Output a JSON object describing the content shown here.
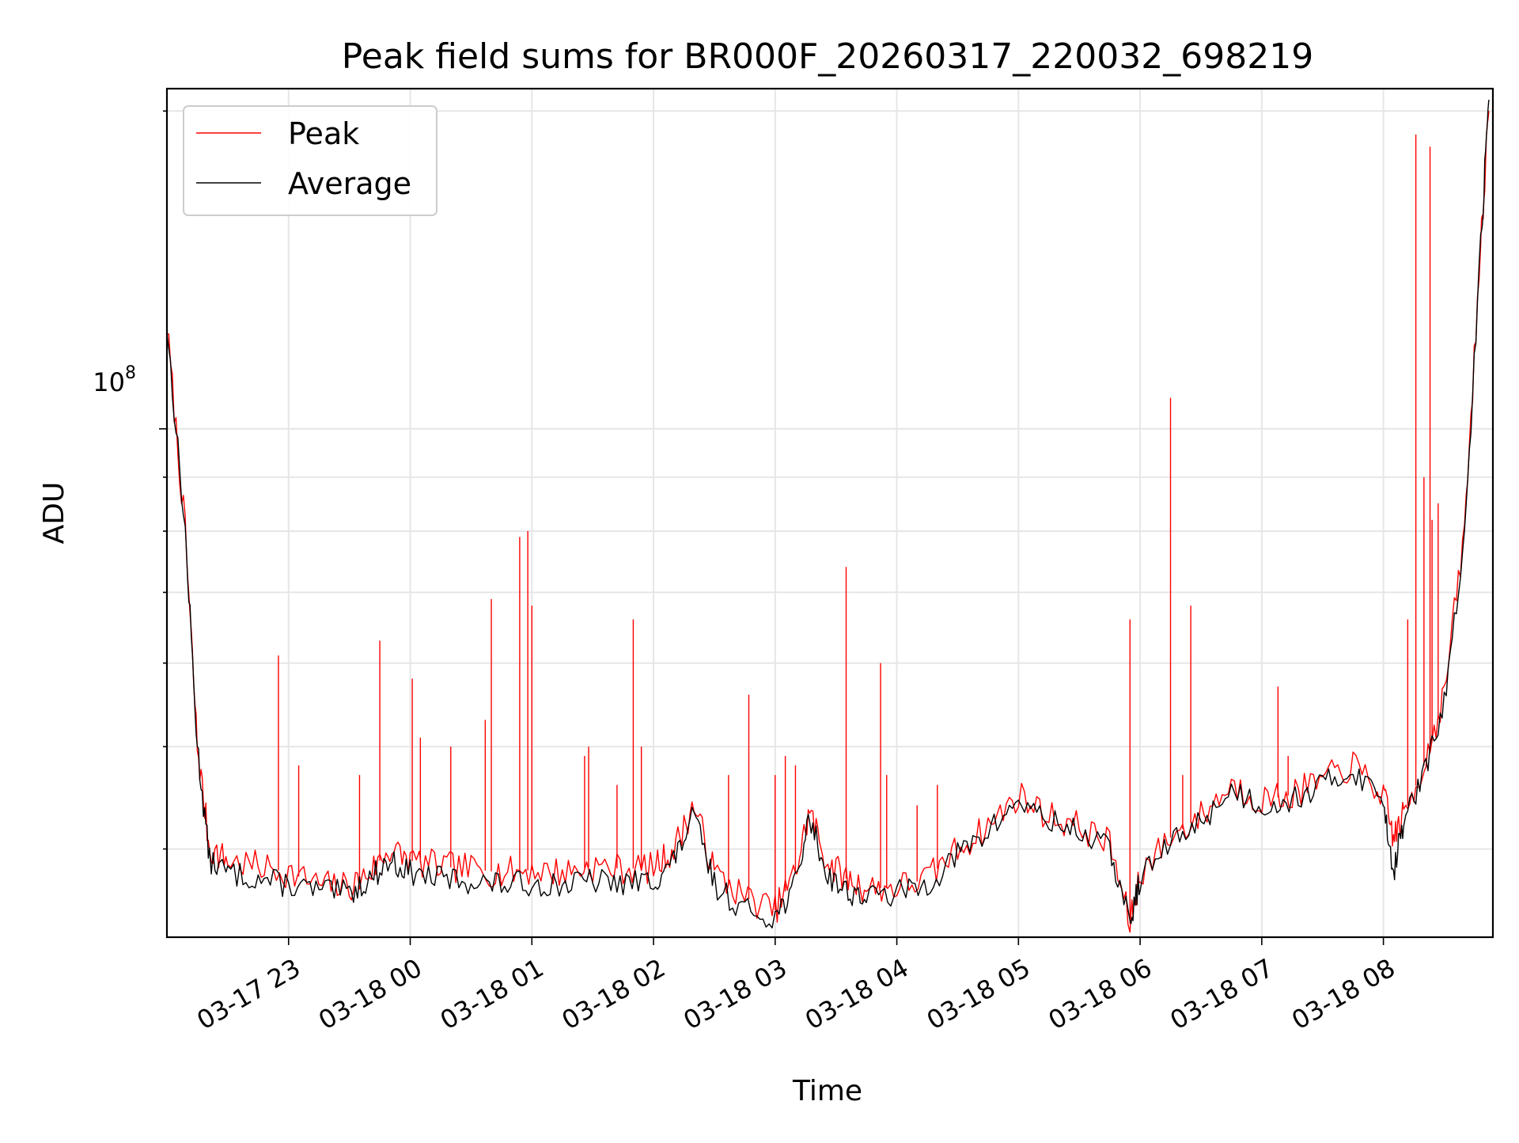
{
  "chart_data": {
    "type": "line",
    "title": "Peak field sums for BR000F_20260317_220032_698219",
    "xlabel": "Time",
    "ylabel": "ADU",
    "y_scale": "log",
    "y_tick_label": {
      "base": "10",
      "exponent": "8"
    },
    "ylim": [
      33000000,
      210000000
    ],
    "x_range_hours": [
      22.0,
      8.9
    ],
    "x_ticks": [
      "03-17 23",
      "03-18 00",
      "03-18 01",
      "03-18 02",
      "03-18 03",
      "03-18 04",
      "03-18 05",
      "03-18 06",
      "03-18 07",
      "03-18 08"
    ],
    "grid": true,
    "legend": {
      "position": "top-left"
    },
    "series": [
      {
        "name": "Peak",
        "color": "#ff0000",
        "x": [
          "03-17 22:00",
          "03-17 22:09",
          "03-17 22:15",
          "03-17 22:21",
          "03-17 22:30",
          "03-17 22:45",
          "03-17 23:00",
          "03-17 23:15",
          "03-17 23:30",
          "03-17 23:40",
          "03-17 23:50",
          "03-18 00:00",
          "03-18 00:15",
          "03-18 00:30",
          "03-18 00:45",
          "03-18 01:00",
          "03-18 01:15",
          "03-18 01:30",
          "03-18 01:45",
          "03-18 02:00",
          "03-18 02:10",
          "03-18 02:20",
          "03-18 02:30",
          "03-18 02:45",
          "03-18 03:00",
          "03-18 03:10",
          "03-18 03:17",
          "03-18 03:25",
          "03-18 03:35",
          "03-18 03:45",
          "03-18 04:00",
          "03-18 04:15",
          "03-18 04:30",
          "03-18 04:45",
          "03-18 05:00",
          "03-18 05:15",
          "03-18 05:30",
          "03-18 05:45",
          "03-18 05:55",
          "03-18 06:00",
          "03-18 06:15",
          "03-18 06:30",
          "03-18 06:45",
          "03-18 07:00",
          "03-18 07:15",
          "03-18 07:30",
          "03-18 07:45",
          "03-18 08:00",
          "03-18 08:05",
          "03-18 08:10",
          "03-18 08:20",
          "03-18 08:30",
          "03-18 08:40",
          "03-18 08:48",
          "03-18 08:52"
        ],
        "values": [
          125000000,
          80000000,
          50000000,
          40000000,
          39000000,
          38500000,
          38000000,
          37000000,
          36800000,
          38000000,
          40000000,
          39000000,
          38500000,
          38300000,
          38000000,
          38200000,
          38000000,
          38500000,
          38300000,
          38400000,
          40000000,
          44000000,
          38000000,
          36000000,
          35000000,
          38000000,
          43500000,
          39000000,
          37500000,
          36700000,
          36800000,
          37500000,
          40000000,
          42000000,
          45000000,
          43000000,
          42000000,
          40500000,
          34000000,
          38000000,
          41000000,
          43000000,
          46000000,
          44500000,
          45000000,
          46500000,
          48000000,
          45000000,
          41000000,
          43000000,
          48000000,
          56000000,
          80000000,
          150000000,
          200000000
        ],
        "spikes": [
          {
            "x": "03-17 22:55",
            "value": 61000000
          },
          {
            "x": "03-17 23:05",
            "value": 48000000
          },
          {
            "x": "03-17 23:35",
            "value": 47000000
          },
          {
            "x": "03-17 23:45",
            "value": 63000000
          },
          {
            "x": "03-18 00:01",
            "value": 58000000
          },
          {
            "x": "03-18 00:05",
            "value": 51000000
          },
          {
            "x": "03-18 00:20",
            "value": 50000000
          },
          {
            "x": "03-18 00:37",
            "value": 53000000
          },
          {
            "x": "03-18 00:40",
            "value": 69000000
          },
          {
            "x": "03-18 00:54",
            "value": 79000000
          },
          {
            "x": "03-18 00:58",
            "value": 80000000
          },
          {
            "x": "03-18 01:00",
            "value": 68000000
          },
          {
            "x": "03-18 01:26",
            "value": 49000000
          },
          {
            "x": "03-18 01:28",
            "value": 50000000
          },
          {
            "x": "03-18 01:42",
            "value": 46000000
          },
          {
            "x": "03-18 01:50",
            "value": 66000000
          },
          {
            "x": "03-18 01:54",
            "value": 50000000
          },
          {
            "x": "03-18 02:37",
            "value": 47000000
          },
          {
            "x": "03-18 02:47",
            "value": 56000000
          },
          {
            "x": "03-18 03:00",
            "value": 47000000
          },
          {
            "x": "03-18 03:05",
            "value": 49000000
          },
          {
            "x": "03-18 03:10",
            "value": 48000000
          },
          {
            "x": "03-18 03:35",
            "value": 74000000
          },
          {
            "x": "03-18 03:52",
            "value": 60000000
          },
          {
            "x": "03-18 03:55",
            "value": 47000000
          },
          {
            "x": "03-18 04:10",
            "value": 44000000
          },
          {
            "x": "03-18 04:20",
            "value": 46000000
          },
          {
            "x": "03-18 05:55",
            "value": 66000000
          },
          {
            "x": "03-18 06:15",
            "value": 107000000
          },
          {
            "x": "03-18 06:21",
            "value": 47000000
          },
          {
            "x": "03-18 06:25",
            "value": 68000000
          },
          {
            "x": "03-18 07:08",
            "value": 57000000
          },
          {
            "x": "03-18 07:13",
            "value": 49000000
          },
          {
            "x": "03-18 08:12",
            "value": 66000000
          },
          {
            "x": "03-18 08:16",
            "value": 190000000
          },
          {
            "x": "03-18 08:20",
            "value": 90000000
          },
          {
            "x": "03-18 08:23",
            "value": 185000000
          },
          {
            "x": "03-18 08:24",
            "value": 82000000
          },
          {
            "x": "03-18 08:27",
            "value": 85000000
          }
        ]
      },
      {
        "name": "Average",
        "color": "#000000",
        "x": [
          "03-17 22:00",
          "03-17 22:09",
          "03-17 22:15",
          "03-17 22:21",
          "03-17 22:30",
          "03-17 22:45",
          "03-17 23:00",
          "03-17 23:15",
          "03-17 23:30",
          "03-17 23:40",
          "03-17 23:50",
          "03-18 00:00",
          "03-18 00:15",
          "03-18 00:30",
          "03-18 00:45",
          "03-18 01:00",
          "03-18 01:15",
          "03-18 01:30",
          "03-18 01:45",
          "03-18 02:00",
          "03-18 02:10",
          "03-18 02:20",
          "03-18 02:30",
          "03-18 02:45",
          "03-18 03:00",
          "03-18 03:10",
          "03-18 03:17",
          "03-18 03:25",
          "03-18 03:35",
          "03-18 03:45",
          "03-18 04:00",
          "03-18 04:15",
          "03-18 04:30",
          "03-18 04:45",
          "03-18 05:00",
          "03-18 05:15",
          "03-18 05:30",
          "03-18 05:45",
          "03-18 05:55",
          "03-18 06:00",
          "03-18 06:15",
          "03-18 06:30",
          "03-18 06:45",
          "03-18 07:00",
          "03-18 07:15",
          "03-18 07:30",
          "03-18 07:45",
          "03-18 08:00",
          "03-18 08:05",
          "03-18 08:10",
          "03-18 08:20",
          "03-18 08:30",
          "03-18 08:40",
          "03-18 08:48",
          "03-18 08:52"
        ],
        "values": [
          125000000,
          80000000,
          50000000,
          39000000,
          38000000,
          37500000,
          37000000,
          36500000,
          36300000,
          37500000,
          39000000,
          38000000,
          37500000,
          37300000,
          37000000,
          37100000,
          37000000,
          37300000,
          37100000,
          37300000,
          39000000,
          43000000,
          37000000,
          35000000,
          34500000,
          37000000,
          43000000,
          38000000,
          36500000,
          36000000,
          36300000,
          37000000,
          39500000,
          41500000,
          44500000,
          42500000,
          41500000,
          40000000,
          34000000,
          37500000,
          40500000,
          42500000,
          45500000,
          44000000,
          44500000,
          46000000,
          47500000,
          44500000,
          38000000,
          42500000,
          47000000,
          55000000,
          78000000,
          150000000,
          205000000
        ]
      }
    ]
  }
}
